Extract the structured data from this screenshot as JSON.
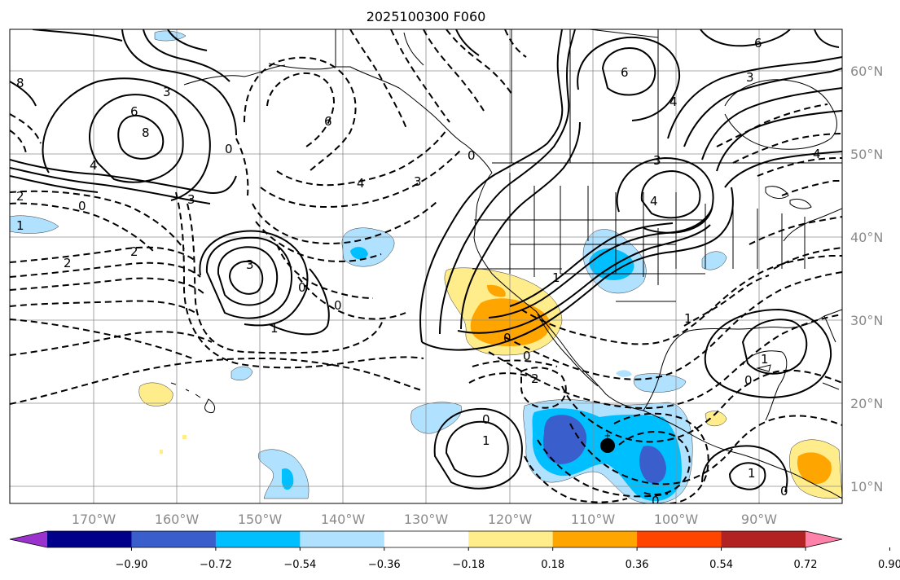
{
  "title": "2025100300 F060",
  "x_ticks": [
    "170°W",
    "160°W",
    "150°W",
    "140°W",
    "130°W",
    "120°W",
    "110°W",
    "100°W",
    "90°W"
  ],
  "y_ticks": [
    "60°N",
    "50°N",
    "40°N",
    "30°N",
    "20°N",
    "10°N"
  ],
  "colorbar": {
    "ticks": [
      "−0.90",
      "−0.72",
      "−0.54",
      "−0.36",
      "−0.18",
      "0.18",
      "0.36",
      "0.54",
      "0.72",
      "0.90"
    ],
    "colors": [
      "#9a32cd",
      "#00008b",
      "#3a5fcd",
      "#00bfff",
      "#b0e2ff",
      "#ffffff",
      "#ffec8b",
      "#ffa500",
      "#ff4500",
      "#b22222",
      "#ff82ab"
    ]
  },
  "contour_labels": [
    {
      "text": "8"
    },
    {
      "text": "3"
    },
    {
      "text": "6"
    },
    {
      "text": "8"
    },
    {
      "text": "4"
    },
    {
      "text": "0"
    },
    {
      "text": "2"
    },
    {
      "text": "1"
    },
    {
      "text": "6"
    },
    {
      "text": "4"
    },
    {
      "text": "3"
    },
    {
      "text": "0"
    },
    {
      "text": "3"
    },
    {
      "text": "2"
    },
    {
      "text": "3"
    },
    {
      "text": "0"
    },
    {
      "text": "0"
    },
    {
      "text": "1"
    },
    {
      "text": "2"
    },
    {
      "text": "6"
    },
    {
      "text": "3"
    },
    {
      "text": "4"
    },
    {
      "text": "4"
    },
    {
      "text": "4"
    },
    {
      "text": "3"
    },
    {
      "text": "1"
    },
    {
      "text": "0"
    },
    {
      "text": "0"
    },
    {
      "text": "0"
    },
    {
      "text": "0"
    },
    {
      "text": "2"
    },
    {
      "text": "0"
    },
    {
      "text": "1"
    },
    {
      "text": "1"
    },
    {
      "text": "0"
    },
    {
      "text": "1"
    },
    {
      "text": "0"
    },
    {
      "text": "1"
    },
    {
      "text": "6"
    }
  ],
  "contour_colors": {
    "line": "#000000",
    "coast": "#000000",
    "grid": "#8c8c8c"
  },
  "marker": {
    "label": "storm center"
  }
}
